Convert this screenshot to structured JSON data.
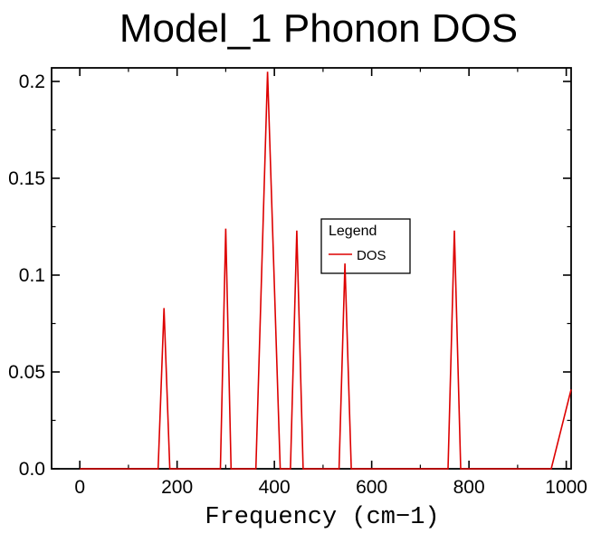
{
  "chart_data": {
    "type": "line",
    "title": "Model_1 Phonon DOS",
    "xlabel": "Frequency (cm−1)",
    "ylabel": "",
    "xlim": [
      -58,
      1010
    ],
    "ylim": [
      0,
      0.207
    ],
    "grid": false,
    "x_ticks": {
      "values": [
        0,
        200,
        400,
        600,
        800,
        1000
      ],
      "labels": [
        "0",
        "200",
        "400",
        "600",
        "800",
        "1000"
      ],
      "minor": [
        100,
        300,
        500,
        700,
        900
      ]
    },
    "y_ticks": {
      "values": [
        0,
        0.05,
        0.1,
        0.15,
        0.2
      ],
      "labels": [
        "0.0",
        "0.05",
        "0.1",
        "0.15",
        "0.2"
      ],
      "minor": [
        0.025,
        0.075,
        0.125,
        0.175
      ]
    },
    "series": [
      {
        "name": "DOS",
        "color": "#dd0000",
        "points": [
          [
            0,
            0
          ],
          [
            161,
            0
          ],
          [
            173,
            0.083
          ],
          [
            185,
            0
          ],
          [
            289,
            0
          ],
          [
            300,
            0.124
          ],
          [
            311,
            0
          ],
          [
            362,
            0
          ],
          [
            386,
            0.205
          ],
          [
            412,
            0
          ],
          [
            433,
            0
          ],
          [
            446,
            0.123
          ],
          [
            459,
            0
          ],
          [
            533,
            0
          ],
          [
            545,
            0.106
          ],
          [
            558,
            0
          ],
          [
            757,
            0
          ],
          [
            770,
            0.123
          ],
          [
            783,
            0
          ],
          [
            969,
            0
          ],
          [
            1010,
            0.041
          ]
        ]
      }
    ],
    "peaks": [
      {
        "frequency": 173,
        "height": 0.083
      },
      {
        "frequency": 300,
        "height": 0.124
      },
      {
        "frequency": 386,
        "height": 0.205
      },
      {
        "frequency": 446,
        "height": 0.123
      },
      {
        "frequency": 545,
        "height": 0.106
      },
      {
        "frequency": 770,
        "height": 0.123
      }
    ],
    "legend": {
      "position": "inside-center",
      "title": "Legend",
      "entries": [
        {
          "label": "DOS",
          "color": "#dd0000"
        }
      ]
    },
    "colors": {
      "line": "#dd0000",
      "axis": "#000000",
      "background": "#ffffff"
    }
  }
}
